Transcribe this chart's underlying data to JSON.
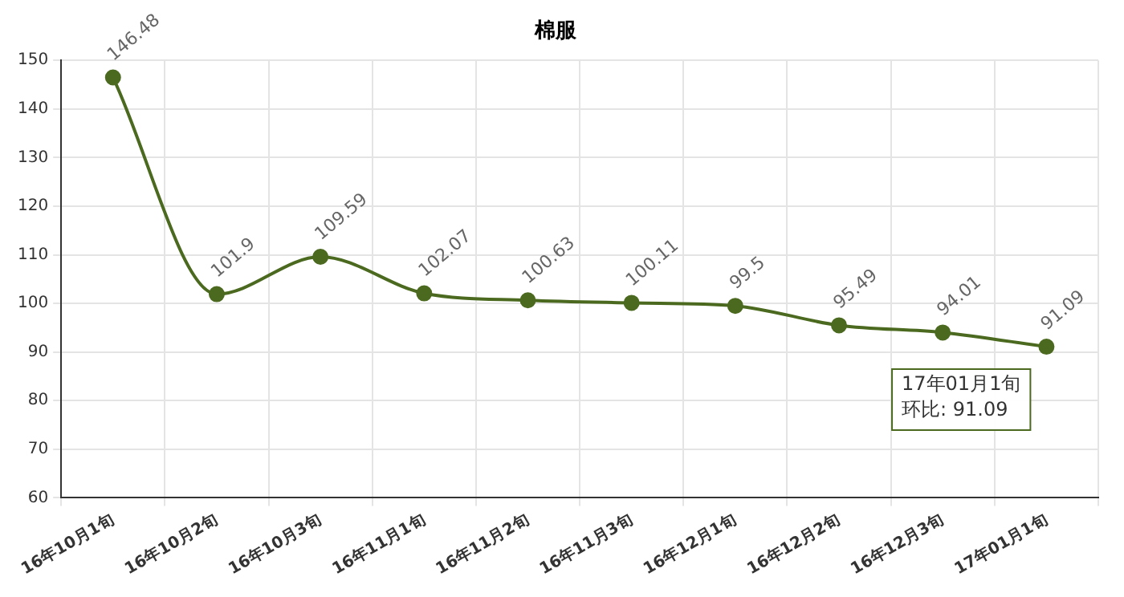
{
  "chart_data": {
    "type": "line",
    "title": "棉服",
    "categories": [
      "16年10月1旬",
      "16年10月2旬",
      "16年10月3旬",
      "16年11月1旬",
      "16年11月2旬",
      "16年11月3旬",
      "16年12月1旬",
      "16年12月2旬",
      "16年12月3旬",
      "17年01月1旬"
    ],
    "series": [
      {
        "color": "#4b6a1f",
        "values": [
          146.48,
          101.9,
          109.59,
          102.07,
          100.63,
          100.11,
          99.5,
          95.49,
          94.01,
          91.09
        ]
      }
    ],
    "ylim": [
      60,
      150
    ],
    "yticks": [
      60,
      70,
      80,
      90,
      100,
      110,
      120,
      130,
      140,
      150
    ],
    "grid": true,
    "legend": false,
    "marker": "circle",
    "line_style": "solid",
    "data_labels": true,
    "annotations": [
      {
        "text": "17年01月1旬",
        "x": "17年01月1旬",
        "y": 91.09
      },
      "环比: 91.09"
    ]
  }
}
